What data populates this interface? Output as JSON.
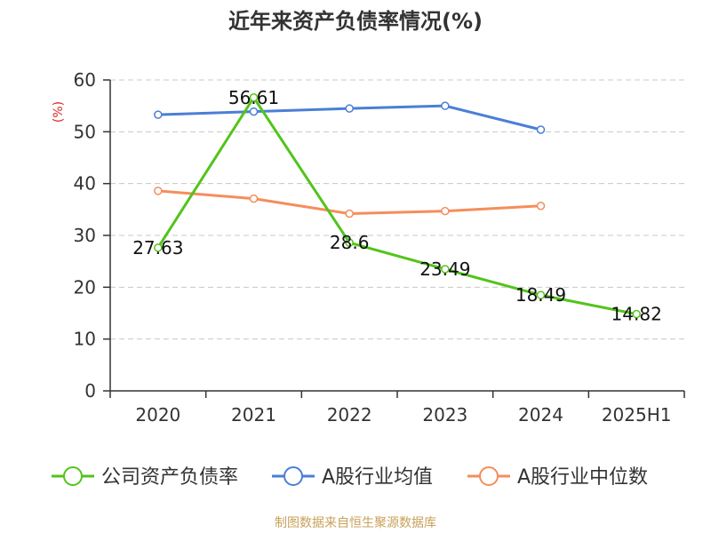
{
  "chart_data": {
    "type": "line",
    "title": "近年来资产负债率情况(%)",
    "ylabel": "(%)",
    "categories": [
      "2020",
      "2021",
      "2022",
      "2023",
      "2024",
      "2025H1"
    ],
    "ylim": [
      0,
      60
    ],
    "yticks": [
      0,
      10,
      20,
      30,
      40,
      50,
      60
    ],
    "grid": true,
    "legend_position": "bottom",
    "series": [
      {
        "name": "公司资产负债率",
        "color": "#52c41a",
        "values": [
          27.63,
          56.61,
          28.6,
          23.49,
          18.49,
          14.82
        ],
        "data_labels": [
          "27.63",
          "56.61",
          "28.6",
          "23.49",
          "18.49",
          "14.82"
        ]
      },
      {
        "name": "A股行业均值",
        "color": "#4a7fd6",
        "values": [
          53.3,
          53.9,
          54.5,
          55.0,
          50.4,
          null
        ]
      },
      {
        "name": "A股行业中位数",
        "color": "#f58d5b",
        "values": [
          38.6,
          37.1,
          34.2,
          34.7,
          35.7,
          null
        ]
      }
    ]
  },
  "source_note": "制图数据来自恒生聚源数据库"
}
